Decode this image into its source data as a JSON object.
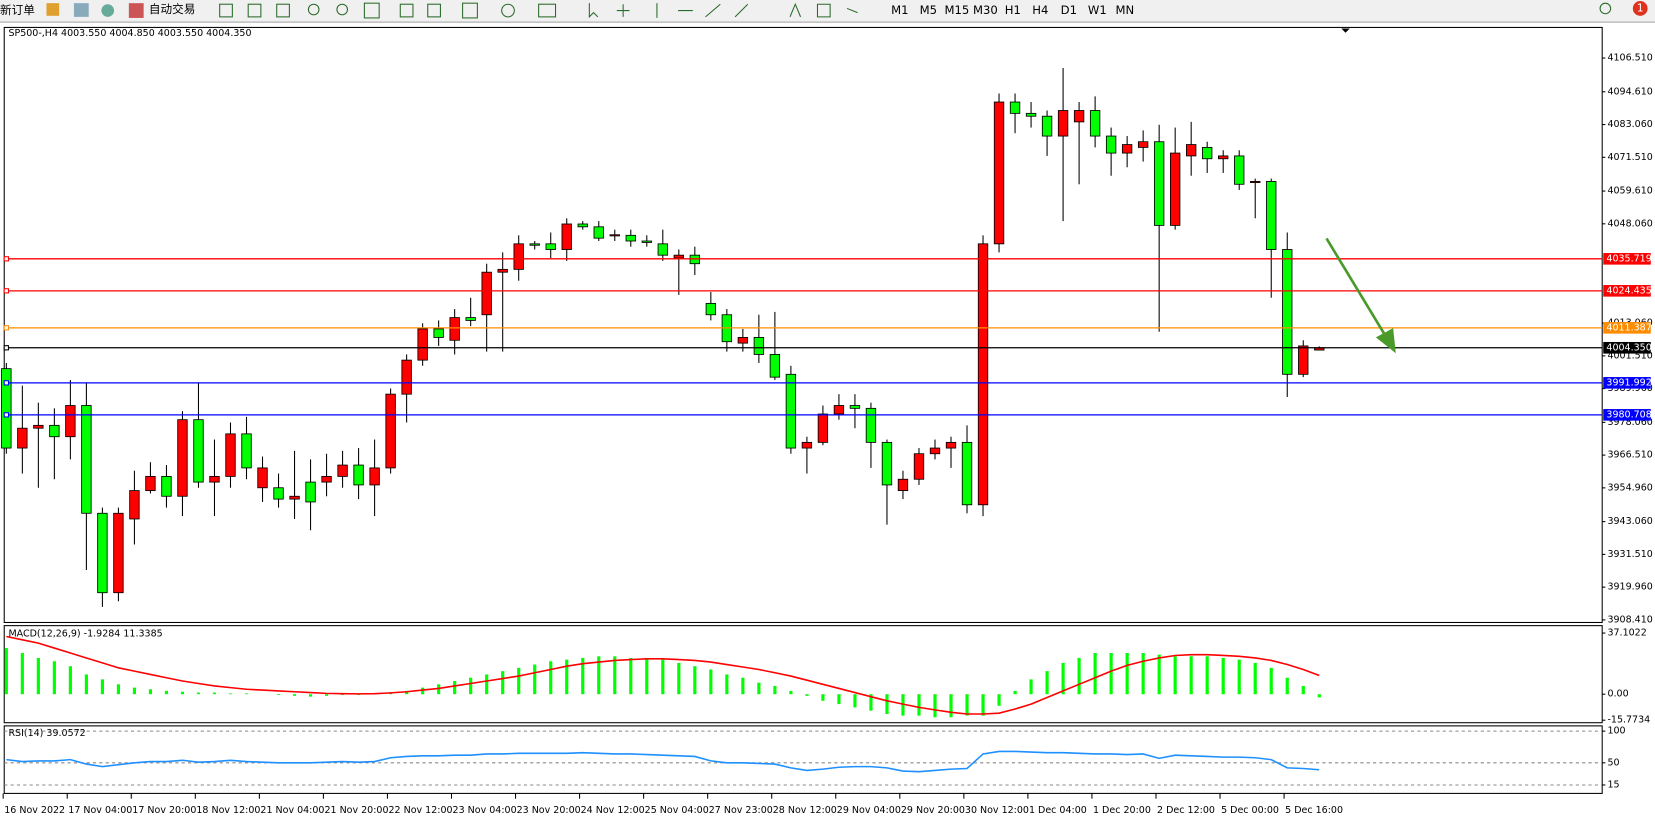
{
  "toolbar": {
    "new_order": "新订单",
    "auto_trading": "自动交易",
    "timeframes": [
      "M1",
      "M5",
      "M15",
      "M30",
      "H1",
      "H4",
      "D1",
      "W1",
      "MN"
    ],
    "notifications": "1"
  },
  "chart_data": [
    {
      "type": "candlestick",
      "title": "SP500-,H4  4003.550 4004.850 4003.550 4004.350",
      "up_color": "#ff0000",
      "down_color": "#00ff00",
      "categories": [
        "16 Nov 2022",
        null,
        null,
        null,
        "17 Nov 04:00",
        null,
        null,
        null,
        "17 Nov 20:00",
        null,
        null,
        null,
        "18 Nov 12:00",
        null,
        null,
        null,
        "21 Nov 04:00",
        null,
        null,
        null,
        "21 Nov 20:00",
        null,
        null,
        null,
        "22 Nov 12:00",
        null,
        null,
        null,
        "23 Nov 04:00",
        null,
        null,
        null,
        "23 Nov 20:00",
        null,
        null,
        null,
        "24 Nov 12:00",
        null,
        null,
        null,
        "25 Nov 04:00",
        null,
        null,
        null,
        "27 Nov 23:00",
        null,
        null,
        null,
        "28 Nov 12:00",
        null,
        null,
        null,
        "29 Nov 04:00",
        null,
        null,
        null,
        "29 Nov 20:00",
        null,
        null,
        null,
        "30 Nov 12:00",
        null,
        null,
        null,
        "1 Dec 04:00",
        null,
        null,
        null,
        "1 Dec 20:00",
        null,
        null,
        null,
        "2 Dec 12:00",
        null,
        null,
        null,
        "5 Dec 00:00",
        null,
        null,
        null,
        "5 Dec 16:00",
        null,
        null
      ],
      "open": [
        3997,
        3969,
        3976,
        3977,
        3973,
        3984,
        3946,
        3918,
        3944,
        3954,
        3959,
        3952,
        3979,
        3957,
        3959,
        3974,
        3955,
        3955,
        3951,
        3957,
        3957,
        3959,
        3963,
        3956,
        3962,
        3988,
        4000,
        4011,
        4007,
        4015,
        4016,
        4031,
        4032,
        4041,
        4041,
        4039,
        4048,
        4047,
        4043.8,
        4044,
        4042,
        4041,
        4036,
        4037,
        4020,
        4016,
        4006,
        4008,
        4002,
        3995,
        3969,
        3971,
        3981,
        3984,
        3983,
        3971,
        3954,
        3958,
        3967,
        3969,
        3971,
        3949,
        4041,
        4091,
        4087,
        4086,
        4079,
        4084,
        4088,
        4079,
        4073,
        4075,
        4077,
        4047.5,
        4072,
        4075,
        4071,
        4072,
        4062.6,
        4063,
        4039,
        3995,
        4003.55
      ],
      "high": [
        3999,
        3991,
        3985,
        3983,
        3993,
        3992,
        3948,
        3948,
        3961,
        3964,
        3963,
        3982,
        3992,
        3972,
        3978,
        3980,
        3966,
        3960,
        3968,
        3965,
        3967,
        3968,
        3969,
        3972,
        3990,
        4002,
        4013,
        4014,
        4018,
        4022,
        4034,
        4038,
        4044,
        4042,
        4045,
        4050,
        4049,
        4049,
        4046,
        4046,
        4044,
        4046,
        4039,
        4040,
        4024,
        4018,
        4011,
        4016,
        4017,
        3998,
        3973,
        3984,
        3988,
        3988,
        3985,
        3972,
        3961,
        3969,
        3972,
        3973,
        3977,
        4044,
        4094,
        4094,
        4091,
        4088,
        4103,
        4091,
        4093,
        4082,
        4079,
        4081,
        4083,
        4082,
        4084,
        4077,
        4074,
        4074,
        4064,
        4064,
        4045,
        4007,
        4004.85
      ],
      "low": [
        3967,
        3960,
        3955,
        3958,
        3965,
        3926,
        3913,
        3915,
        3935,
        3953,
        3948,
        3945,
        3955,
        3945,
        3955,
        3958,
        3950,
        3948,
        3944,
        3940,
        3952,
        3955,
        3951,
        3945,
        3960,
        3978,
        3998,
        4005,
        4002,
        4012,
        4003,
        4003,
        4028,
        4039,
        4036,
        4035,
        4046,
        4042,
        4042,
        4040,
        4040,
        4035,
        4023,
        4030,
        4014,
        4003,
        4003,
        3999,
        3993,
        3967,
        3960,
        3970,
        3979,
        3976,
        3962,
        3942,
        3951,
        3956,
        3965,
        3962,
        3946,
        3945,
        4038,
        4080,
        4082,
        4072,
        4049,
        4062,
        4075,
        4065,
        4068,
        4070,
        4010,
        4046,
        4065,
        4066,
        4066,
        4060,
        4050,
        4022,
        3987,
        3994,
        4003.55
      ],
      "close": [
        3969,
        3976,
        3977,
        3973,
        3984,
        3946,
        3918,
        3946,
        3954,
        3959,
        3952,
        3979,
        3957,
        3959,
        3974,
        3962,
        3962,
        3951,
        3952,
        3950,
        3959,
        3963,
        3956,
        3962,
        3988,
        4000,
        4011,
        4008,
        4015,
        4014,
        4031,
        4032,
        4041,
        4040.5,
        4039,
        4048,
        4047,
        4043,
        4044.2,
        4042,
        4041.5,
        4037,
        4037,
        4034,
        4016,
        4006.5,
        4008,
        4002,
        3994,
        3969,
        3971,
        3981,
        3984,
        3983,
        3971,
        3956,
        3958,
        3967,
        3969,
        3971,
        3949,
        4041,
        4091,
        4087,
        4086,
        4079,
        4088,
        4088,
        4079,
        4073,
        4076,
        4077,
        4047.5,
        4073,
        4076,
        4071,
        4072,
        4062,
        4063,
        4039,
        3995,
        4005,
        4004.35
      ],
      "ylim": [
        3907.5,
        4117.3
      ],
      "yticks": [
        {
          "value": 4106.51,
          "label": "4106.510"
        },
        {
          "value": 4094.61,
          "label": "4094.610"
        },
        {
          "value": 4083.06,
          "label": "4083.060"
        },
        {
          "value": 4071.51,
          "label": "4071.510"
        },
        {
          "value": 4059.61,
          "label": "4059.610"
        },
        {
          "value": 4048.06,
          "label": "4048.060"
        },
        {
          "value": 4013.06,
          "label": "4013.060"
        },
        {
          "value": 4001.51,
          "label": "4001.510"
        },
        {
          "value": 3989.96,
          "label": "3989.960"
        },
        {
          "value": 3978.06,
          "label": "3978.060"
        },
        {
          "value": 3966.51,
          "label": "3966.510"
        },
        {
          "value": 3954.96,
          "label": "3954.960"
        },
        {
          "value": 3943.06,
          "label": "3943.060"
        },
        {
          "value": 3931.51,
          "label": "3931.510"
        },
        {
          "value": 3919.96,
          "label": "3919.960"
        },
        {
          "value": 3908.41,
          "label": "3908.410"
        }
      ],
      "levels": [
        {
          "value": 4035.719,
          "color": "#ff0000"
        },
        {
          "value": 4024.435,
          "color": "#ff0000"
        },
        {
          "value": 4011.387,
          "color": "#ff8c00"
        },
        {
          "value": 4004.35,
          "label": "4004.350",
          "color": "#000000"
        },
        {
          "value": 3991.992,
          "color": "#0000ff"
        },
        {
          "value": 3980.708,
          "color": "#0000ff"
        }
      ]
    },
    {
      "type": "bar",
      "title": "MACD(12,26,9) -1.9284 11.3385",
      "ylim": [
        -17.3,
        41.6
      ],
      "yticks": [
        {
          "value": 37.1022,
          "label": "37.1022"
        },
        {
          "value": 0,
          "label": "0.00"
        },
        {
          "value": -15.7734,
          "label": "-15.7734"
        }
      ],
      "series": [
        {
          "color": "#00ff00",
          "values": [
            28,
            25,
            22,
            20,
            17,
            12,
            9,
            6,
            4,
            3,
            2,
            1.5,
            1,
            1,
            0.5,
            0.5,
            0,
            -0.5,
            -1,
            -1.5,
            -1,
            -0.5,
            -0.5,
            0,
            1,
            2,
            4,
            6,
            8,
            10,
            12,
            14,
            16,
            18,
            20,
            21,
            22,
            23,
            23,
            22,
            22,
            21,
            19,
            17,
            15,
            12,
            10,
            7,
            5,
            2,
            -1,
            -4,
            -6,
            -8,
            -10,
            -12,
            -13,
            -13,
            -14,
            -14,
            -13,
            -13,
            -7,
            2,
            9,
            14,
            19,
            22,
            25,
            25,
            25,
            25,
            24,
            23,
            23,
            23,
            22,
            21,
            19,
            16,
            10,
            5,
            -1.9284
          ]
        },
        {
          "type": "line",
          "color": "#ff0000",
          "values": [
            35,
            33,
            31,
            28,
            25,
            22,
            19,
            16,
            14,
            12,
            10,
            8,
            6.5,
            5,
            4,
            3,
            2.5,
            2,
            1.5,
            1,
            0.5,
            0.3,
            0.2,
            0.3,
            0.8,
            1.5,
            2.5,
            3.5,
            5,
            6.5,
            8,
            9.5,
            11,
            13,
            15,
            17,
            18.5,
            19.5,
            20.5,
            21,
            21.5,
            21.5,
            21,
            20.5,
            19.5,
            18,
            16.5,
            15,
            13,
            11,
            8.5,
            6,
            3.5,
            1,
            -1.5,
            -4,
            -6,
            -8,
            -9.5,
            -11,
            -12,
            -12,
            -11.5,
            -9,
            -6,
            -2,
            2,
            6,
            10,
            14,
            17.5,
            20,
            22,
            23.5,
            24,
            24,
            23.5,
            23,
            22,
            20.5,
            18,
            15,
            11.3385
          ]
        }
      ]
    },
    {
      "type": "line",
      "title": "RSI(14) 39.0572",
      "ylim": [
        1.7,
        108.3
      ],
      "yticks": [
        100,
        50,
        15
      ],
      "series": [
        {
          "color": "#1e90ff",
          "values": [
            55,
            52,
            53,
            53,
            55,
            48,
            44,
            47,
            50,
            52,
            52,
            54,
            51,
            52,
            54,
            52,
            51,
            50,
            50,
            50,
            51,
            52,
            51,
            52,
            58,
            60,
            61,
            61,
            62,
            62,
            64,
            64,
            65,
            65,
            65,
            65,
            66,
            65,
            64,
            64,
            63,
            62,
            61,
            60,
            53,
            50,
            50,
            49,
            48,
            42,
            38,
            40,
            43,
            44,
            44,
            42,
            37,
            36,
            38,
            40,
            41,
            64,
            68,
            68,
            67,
            66,
            66,
            65,
            64,
            64,
            63,
            64,
            57,
            62,
            61,
            60,
            59,
            59,
            58,
            55,
            42,
            41,
            39.0572
          ]
        }
      ]
    }
  ]
}
